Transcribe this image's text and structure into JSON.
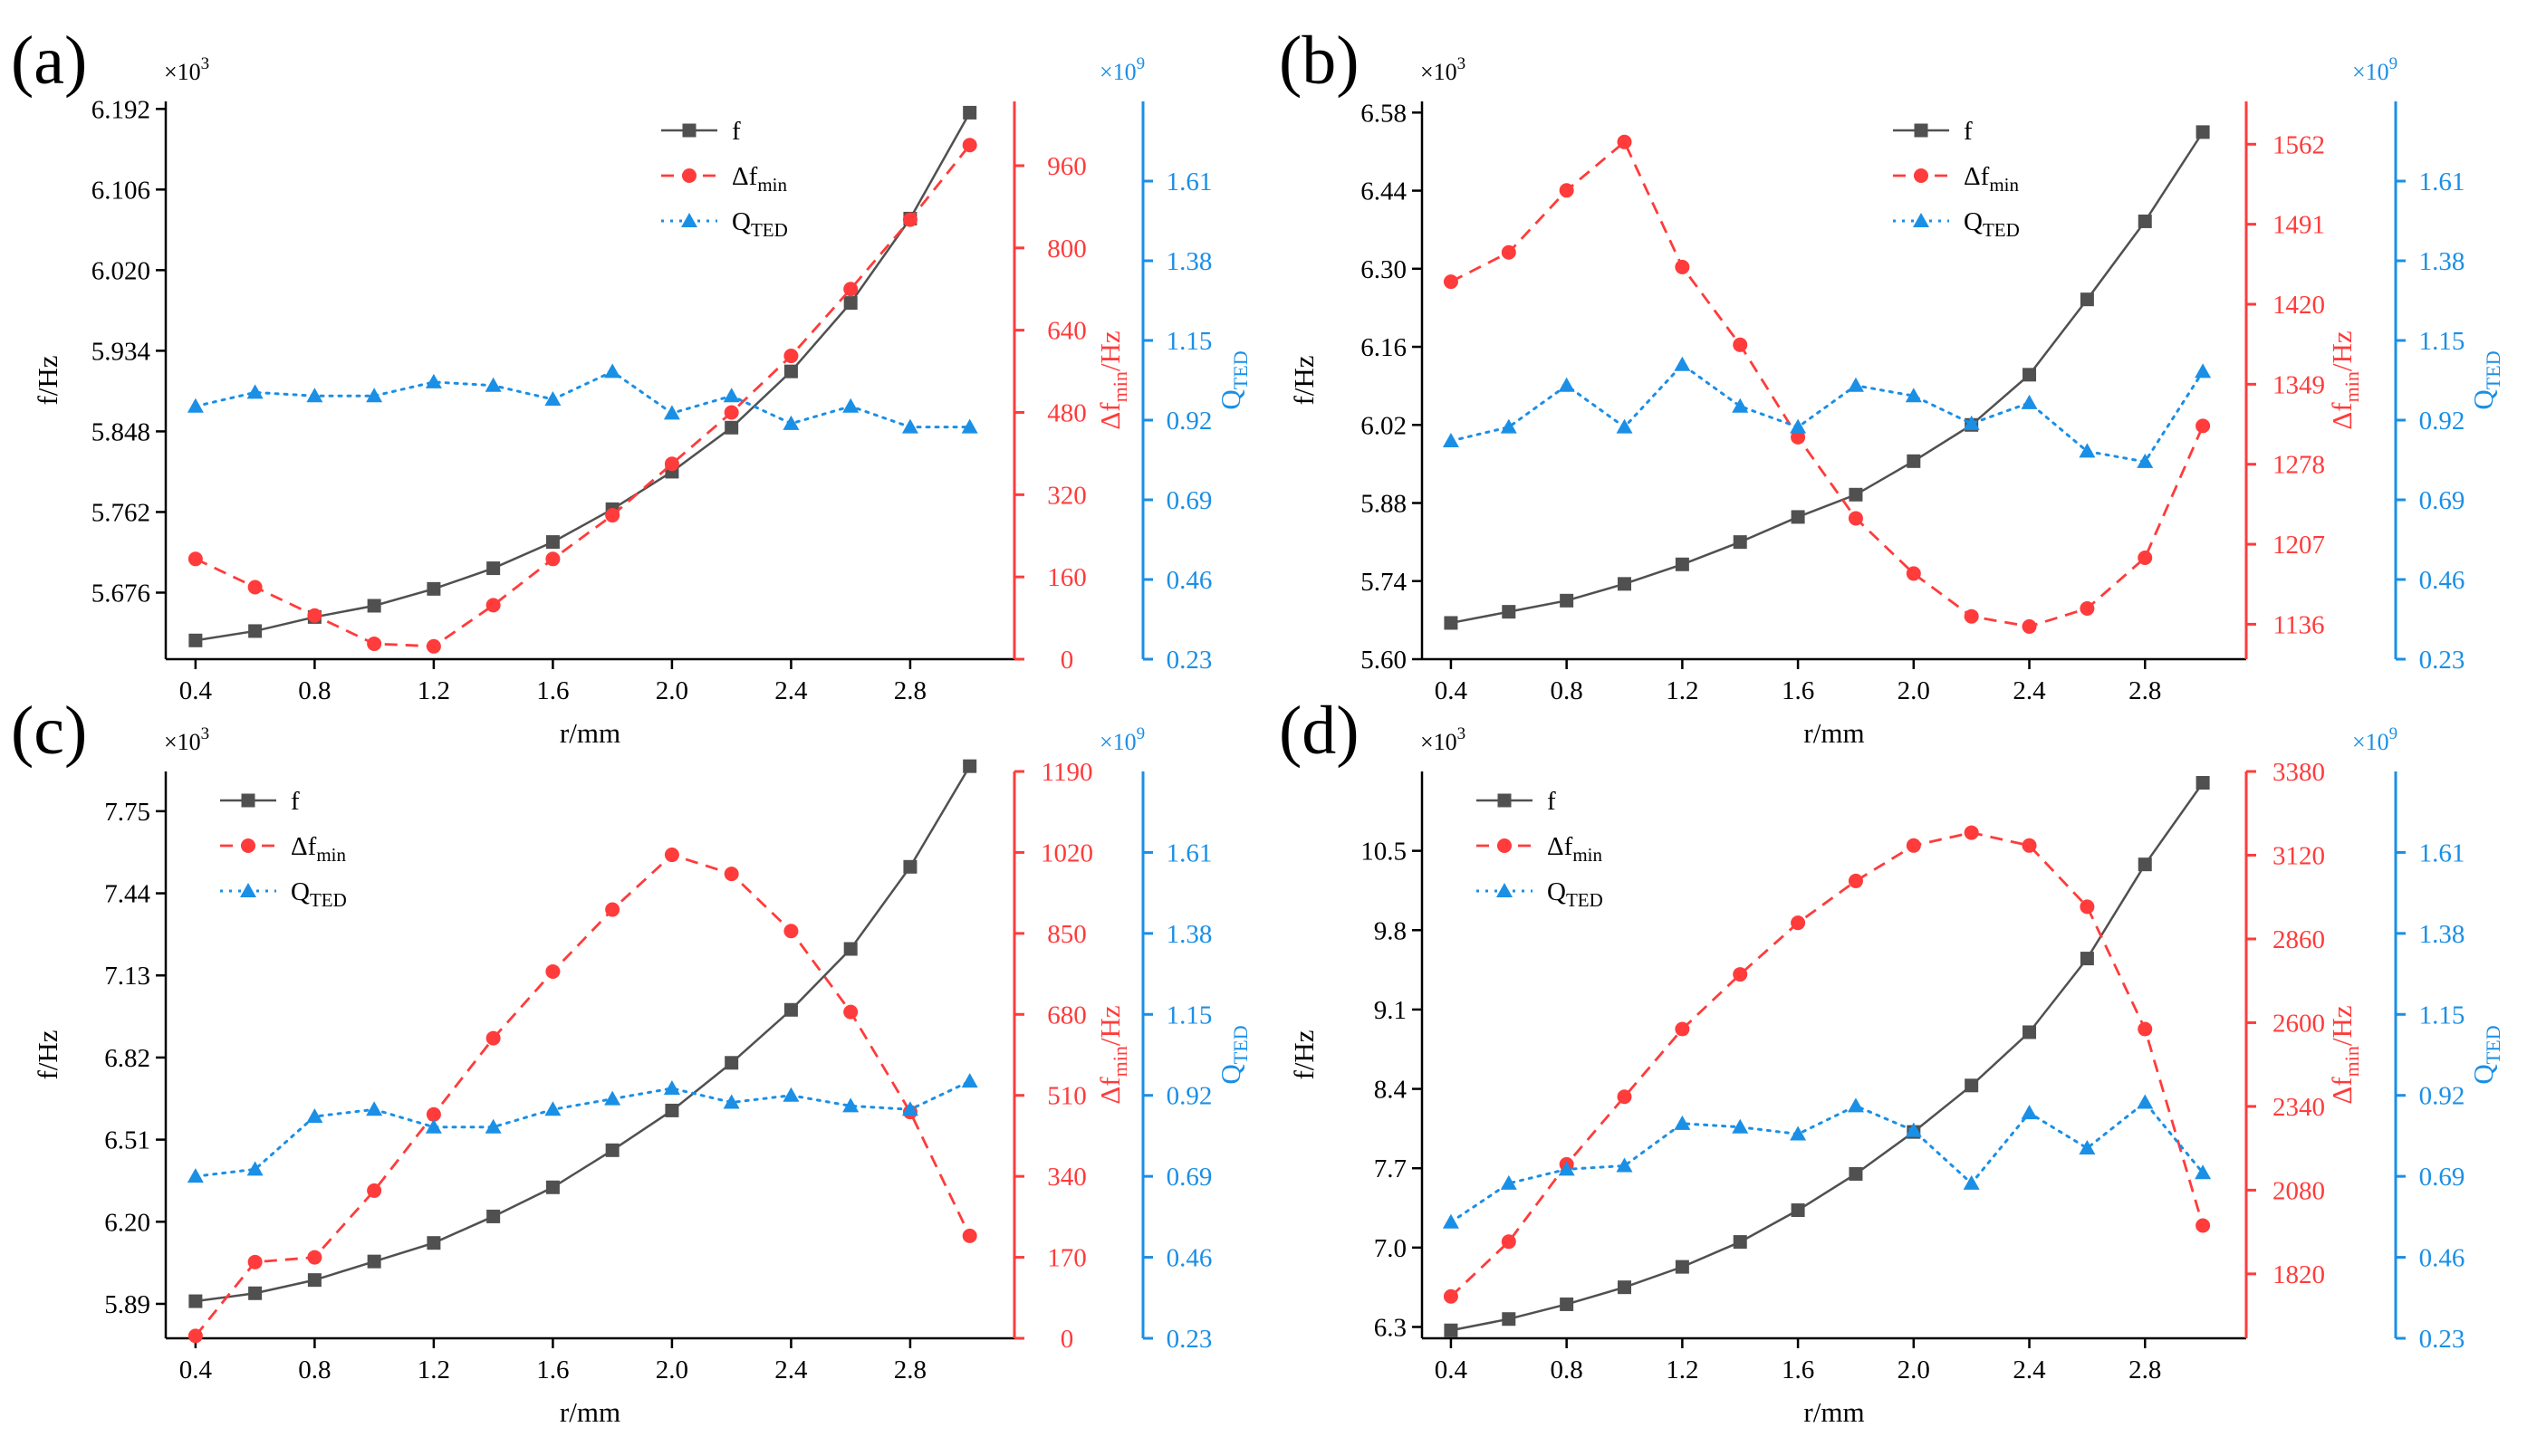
{
  "figure": {
    "colors": {
      "f": "#505050",
      "df": "#ff3b3b",
      "q": "#1a8fe6",
      "axis": "#000000"
    },
    "legend": {
      "f": "f",
      "df_main": "Δf",
      "df_sub": "min",
      "q_main": "Q",
      "q_sub": "TED"
    }
  },
  "chart_data": [
    {
      "panel_label": "(a)",
      "type": "line",
      "xlabel": "r/mm",
      "ylabel": "f/Hz",
      "y2label_main": "Δf",
      "y2label_sub": "min",
      "y2label_unit": "/Hz",
      "y3label_main": "Q",
      "y3label_sub": "TED",
      "y1_multiplier": "×10",
      "y1_exponent": "3",
      "y3_multiplier": "×10",
      "y3_exponent": "9",
      "x": [
        0.4,
        0.6,
        0.8,
        1.0,
        1.2,
        1.4,
        1.6,
        1.8,
        2.0,
        2.2,
        2.4,
        2.6,
        2.8,
        3.0
      ],
      "xlim": [
        0.3,
        3.15
      ],
      "xticks": [
        "0.4",
        "0.8",
        "1.2",
        "1.6",
        "2.0",
        "2.4",
        "2.8"
      ],
      "y1lim": [
        5.605,
        6.2
      ],
      "y1ticks": [
        "5.676",
        "5.762",
        "5.848",
        "5.934",
        "6.020",
        "6.106",
        "6.192"
      ],
      "y2lim": [
        0,
        1085
      ],
      "y2ticks": [
        "0",
        "160",
        "320",
        "480",
        "640",
        "800",
        "960"
      ],
      "y3lim": [
        0.23,
        1.84
      ],
      "y3ticks": [
        "0.23",
        "0.46",
        "0.69",
        "0.92",
        "1.15",
        "1.38",
        "1.61"
      ],
      "legend_position": "top-right",
      "series": [
        {
          "name": "f",
          "axis": "y1",
          "values": [
            5.625,
            5.635,
            5.65,
            5.662,
            5.68,
            5.702,
            5.73,
            5.765,
            5.805,
            5.852,
            5.912,
            5.985,
            6.075,
            6.188
          ]
        },
        {
          "name": "Δfmin",
          "axis": "y2",
          "values": [
            195,
            140,
            85,
            30,
            25,
            105,
            195,
            280,
            380,
            480,
            590,
            720,
            855,
            1000
          ]
        },
        {
          "name": "QTED",
          "axis": "y3",
          "values": [
            0.96,
            1.0,
            0.99,
            0.99,
            1.03,
            1.02,
            0.98,
            1.06,
            0.94,
            0.99,
            0.91,
            0.96,
            0.9,
            0.9
          ]
        }
      ]
    },
    {
      "panel_label": "(b)",
      "type": "line",
      "xlabel": "r/mm",
      "ylabel": "f/Hz",
      "y2label_main": "Δf",
      "y2label_sub": "min",
      "y2label_unit": "/Hz",
      "y3label_main": "Q",
      "y3label_sub": "TED",
      "y1_multiplier": "×10",
      "y1_exponent": "3",
      "y3_multiplier": "×10",
      "y3_exponent": "9",
      "x": [
        0.4,
        0.6,
        0.8,
        1.0,
        1.2,
        1.4,
        1.6,
        1.8,
        2.0,
        2.2,
        2.4,
        2.6,
        2.8,
        3.0
      ],
      "xlim": [
        0.3,
        3.15
      ],
      "xticks": [
        "0.4",
        "0.8",
        "1.2",
        "1.6",
        "2.0",
        "2.4",
        "2.8"
      ],
      "y1lim": [
        5.6,
        6.6
      ],
      "y1ticks": [
        "5.60",
        "5.74",
        "5.88",
        "6.02",
        "6.16",
        "6.30",
        "6.44",
        "6.58"
      ],
      "y2lim": [
        1105,
        1600
      ],
      "y2ticks": [
        "1136",
        "1207",
        "1278",
        "1349",
        "1420",
        "1491",
        "1562"
      ],
      "y3lim": [
        0.23,
        1.84
      ],
      "y3ticks": [
        "0.23",
        "0.46",
        "0.69",
        "0.92",
        "1.15",
        "1.38",
        "1.61"
      ],
      "legend_position": "top-right",
      "series": [
        {
          "name": "f",
          "axis": "y1",
          "values": [
            5.665,
            5.685,
            5.705,
            5.735,
            5.77,
            5.81,
            5.855,
            5.895,
            5.955,
            6.02,
            6.11,
            6.245,
            6.385,
            6.545
          ]
        },
        {
          "name": "Δfmin",
          "axis": "y2",
          "values": [
            1440,
            1466,
            1521,
            1564,
            1453,
            1384,
            1302,
            1230,
            1181,
            1143,
            1134,
            1150,
            1195,
            1312
          ]
        },
        {
          "name": "QTED",
          "axis": "y3",
          "values": [
            0.86,
            0.9,
            1.02,
            0.9,
            1.08,
            0.96,
            0.9,
            1.02,
            0.99,
            0.91,
            0.97,
            0.83,
            0.8,
            1.06
          ]
        }
      ]
    },
    {
      "panel_label": "(c)",
      "type": "line",
      "xlabel": "r/mm",
      "ylabel": "f/Hz",
      "y2label_main": "Δf",
      "y2label_sub": "min",
      "y2label_unit": "/Hz",
      "y3label_main": "Q",
      "y3label_sub": "TED",
      "y1_multiplier": "×10",
      "y1_exponent": "3",
      "y3_multiplier": "×10",
      "y3_exponent": "9",
      "x": [
        0.4,
        0.6,
        0.8,
        1.0,
        1.2,
        1.4,
        1.6,
        1.8,
        2.0,
        2.2,
        2.4,
        2.6,
        2.8,
        3.0
      ],
      "xlim": [
        0.3,
        3.15
      ],
      "xticks": [
        "0.4",
        "0.8",
        "1.2",
        "1.6",
        "2.0",
        "2.4",
        "2.8"
      ],
      "y1lim": [
        5.76,
        7.9
      ],
      "y1ticks": [
        "5.89",
        "6.20",
        "6.51",
        "6.82",
        "7.13",
        "7.44",
        "7.75"
      ],
      "y2lim": [
        0,
        1190
      ],
      "y2ticks": [
        "0",
        "170",
        "340",
        "510",
        "680",
        "850",
        "1020",
        "1190"
      ],
      "y3lim": [
        0.23,
        1.84
      ],
      "y3ticks": [
        "0.23",
        "0.46",
        "0.69",
        "0.92",
        "1.15",
        "1.38",
        "1.61"
      ],
      "legend_position": "top-left",
      "series": [
        {
          "name": "f",
          "axis": "y1",
          "values": [
            5.9,
            5.93,
            5.98,
            6.05,
            6.12,
            6.22,
            6.33,
            6.47,
            6.62,
            6.8,
            7.0,
            7.23,
            7.54,
            7.92
          ]
        },
        {
          "name": "Δfmin",
          "axis": "y2",
          "values": [
            5,
            160,
            170,
            310,
            470,
            630,
            770,
            900,
            1015,
            975,
            855,
            685,
            475,
            215
          ]
        },
        {
          "name": "QTED",
          "axis": "y3",
          "values": [
            0.69,
            0.71,
            0.86,
            0.88,
            0.83,
            0.83,
            0.88,
            0.91,
            0.94,
            0.9,
            0.92,
            0.89,
            0.88,
            0.96
          ]
        }
      ]
    },
    {
      "panel_label": "(d)",
      "type": "line",
      "xlabel": "r/mm",
      "ylabel": "f/Hz",
      "y2label_main": "Δf",
      "y2label_sub": "min",
      "y2label_unit": "/Hz",
      "y3label_main": "Q",
      "y3label_sub": "TED",
      "y1_multiplier": "×10",
      "y1_exponent": "3",
      "y3_multiplier": "×10",
      "y3_exponent": "9",
      "x": [
        0.4,
        0.6,
        0.8,
        1.0,
        1.2,
        1.4,
        1.6,
        1.8,
        2.0,
        2.2,
        2.4,
        2.6,
        2.8,
        3.0
      ],
      "xlim": [
        0.3,
        3.15
      ],
      "xticks": [
        "0.4",
        "0.8",
        "1.2",
        "1.6",
        "2.0",
        "2.4",
        "2.8"
      ],
      "y1lim": [
        6.2,
        11.2
      ],
      "y1ticks": [
        "6.3",
        "7.0",
        "7.7",
        "8.4",
        "9.1",
        "9.8",
        "10.5"
      ],
      "y2lim": [
        1620,
        3380
      ],
      "y2ticks": [
        "1820",
        "2080",
        "2340",
        "2600",
        "2860",
        "3120",
        "3380"
      ],
      "y3lim": [
        0.23,
        1.84
      ],
      "y3ticks": [
        "0.23",
        "0.46",
        "0.69",
        "0.92",
        "1.15",
        "1.38",
        "1.61"
      ],
      "legend_position": "top-left",
      "series": [
        {
          "name": "f",
          "axis": "y1",
          "values": [
            6.27,
            6.37,
            6.5,
            6.65,
            6.83,
            7.05,
            7.33,
            7.65,
            8.02,
            8.43,
            8.9,
            9.55,
            10.38,
            11.1
          ]
        },
        {
          "name": "Δfmin",
          "axis": "y2",
          "values": [
            1750,
            1920,
            2160,
            2370,
            2580,
            2750,
            2910,
            3040,
            3150,
            3190,
            3150,
            2960,
            2580,
            1970
          ]
        },
        {
          "name": "QTED",
          "axis": "y3",
          "values": [
            0.56,
            0.67,
            0.71,
            0.72,
            0.84,
            0.83,
            0.81,
            0.89,
            0.82,
            0.67,
            0.87,
            0.77,
            0.9,
            0.7
          ]
        }
      ]
    }
  ]
}
